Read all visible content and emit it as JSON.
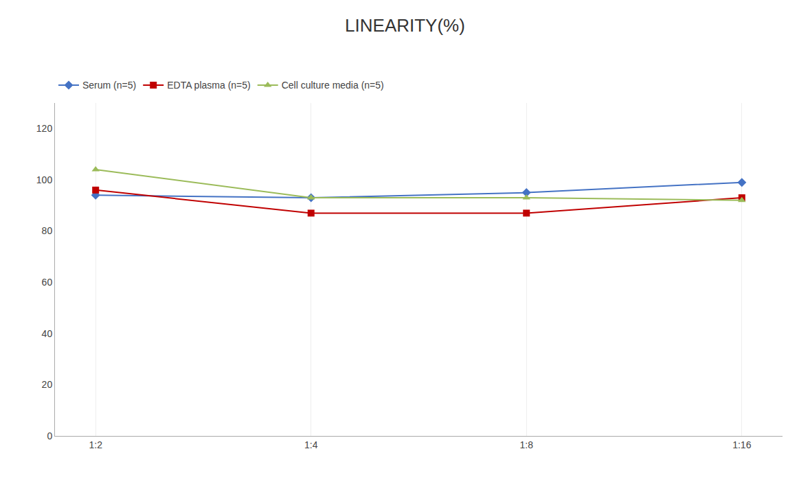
{
  "chart_data": {
    "type": "line",
    "title": "LINEARITY(%)",
    "categories": [
      "1:2",
      "1:4",
      "1:8",
      "1:16"
    ],
    "series": [
      {
        "name": "Serum (n=5)",
        "color": "#4472C4",
        "marker": "diamond",
        "values": [
          94,
          93,
          95,
          99
        ]
      },
      {
        "name": "EDTA plasma (n=5)",
        "color": "#C00000",
        "marker": "square",
        "values": [
          96,
          87,
          87,
          93
        ]
      },
      {
        "name": "Cell culture media (n=5)",
        "color": "#9BBB59",
        "marker": "triangle-up",
        "values": [
          104,
          93,
          93,
          92
        ]
      }
    ],
    "ylim": [
      0,
      130
    ],
    "yticks": [
      0,
      20,
      40,
      60,
      80,
      100,
      120
    ],
    "grid": "x",
    "legend": "top"
  }
}
